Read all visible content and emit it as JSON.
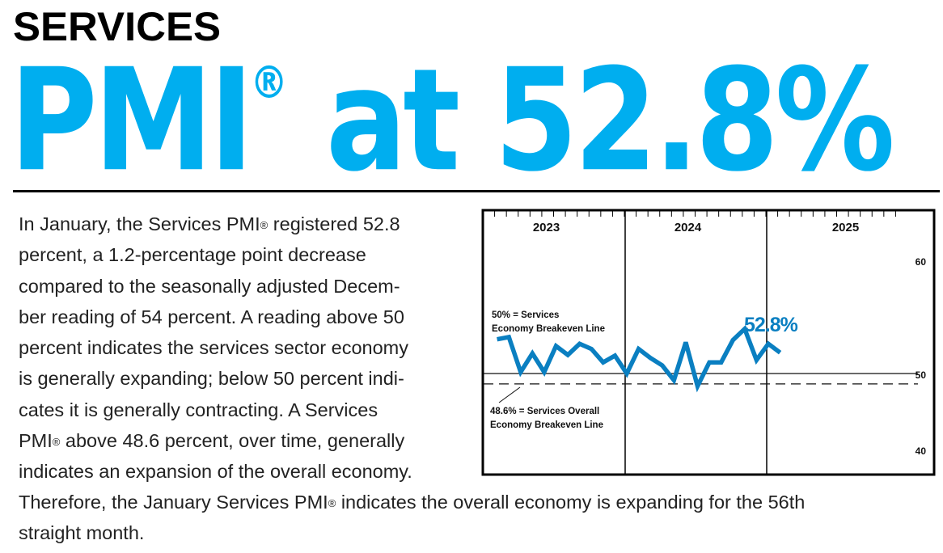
{
  "header": {
    "kicker": "SERVICES",
    "headline_prefix": "PMI",
    "registered_mark": "®",
    "headline_suffix": " at 52.8%"
  },
  "body": {
    "lines": [
      [
        "In January, the Services PMI",
        "®",
        " registered 52.8"
      ],
      [
        "percent, a 1.2-percentage point decrease",
        "",
        ""
      ],
      [
        "compared to the seasonally adjusted Decem-",
        "",
        ""
      ],
      [
        "ber reading of 54 percent. A reading above 50",
        "",
        ""
      ],
      [
        "percent indicates the services sector economy",
        "",
        ""
      ],
      [
        "is generally expanding; below 50 percent indi-",
        "",
        ""
      ],
      [
        "cates it is generally contracting. A Services",
        "",
        ""
      ],
      [
        "PMI",
        "®",
        " above 48.6 percent, over time, generally"
      ],
      [
        "indicates an expansion of the overall economy.",
        "",
        ""
      ]
    ],
    "tail_lines": [
      [
        "Therefore, the January Services PMI",
        "®",
        " indicates the overall economy is expanding for the 56th"
      ],
      [
        "straight month.",
        "",
        ""
      ]
    ]
  },
  "colors": {
    "brand_blue": "#00aeef",
    "line_blue": "#0a7fc1",
    "text": "#222222"
  },
  "chart_data": {
    "type": "line",
    "title": "",
    "xlabel": "",
    "ylabel": "",
    "ylim": [
      40,
      60
    ],
    "yticks": [
      40,
      50,
      60
    ],
    "year_labels": [
      "2023",
      "2024",
      "2025"
    ],
    "months_per_year": 12,
    "x": [
      "Jan 2023",
      "Feb 2023",
      "Mar 2023",
      "Apr 2023",
      "May 2023",
      "Jun 2023",
      "Jul 2023",
      "Aug 2023",
      "Sep 2023",
      "Oct 2023",
      "Nov 2023",
      "Dec 2023",
      "Jan 2024",
      "Feb 2024",
      "Mar 2024",
      "Apr 2024",
      "May 2024",
      "Jun 2024",
      "Jul 2024",
      "Aug 2024",
      "Sep 2024",
      "Oct 2024",
      "Nov 2024",
      "Dec 2024",
      "Jan 2025"
    ],
    "series": [
      {
        "name": "Services PMI",
        "values": [
          54.6,
          54.9,
          50.2,
          52.7,
          50.2,
          53.7,
          52.5,
          54.0,
          53.3,
          51.5,
          52.4,
          50.0,
          53.3,
          52.1,
          51.1,
          49.1,
          54.2,
          48.3,
          51.5,
          51.5,
          54.5,
          56.0,
          51.8,
          54.0,
          52.8
        ]
      }
    ],
    "reference_lines": [
      {
        "value": 50,
        "style": "solid",
        "label_lines": [
          "50% = Services",
          "Economy Breakeven Line"
        ]
      },
      {
        "value": 48.6,
        "style": "dashed",
        "label_lines": [
          "48.6% = Services Overall",
          "Economy Breakeven Line"
        ]
      }
    ],
    "annotations": [
      {
        "text": "52.8%",
        "x": "Jan 2025",
        "y": 52.8
      }
    ],
    "grid": false,
    "legend": "none"
  }
}
